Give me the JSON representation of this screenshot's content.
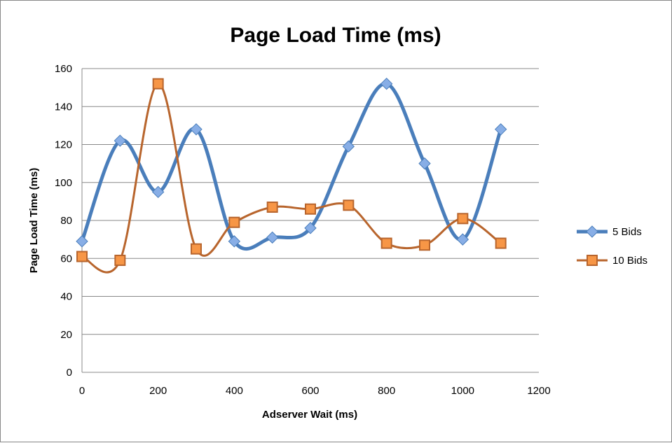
{
  "chart_data": {
    "type": "line",
    "title": "Page Load Time (ms)",
    "xlabel": "Adserver Wait (ms)",
    "ylabel": "Page Load Time (ms)",
    "xlim": [
      0,
      1200
    ],
    "ylim": [
      0,
      160
    ],
    "xticks": [
      0,
      200,
      400,
      600,
      800,
      1000,
      1200
    ],
    "yticks": [
      0,
      20,
      40,
      60,
      80,
      100,
      120,
      140,
      160
    ],
    "grid": "horizontal",
    "smooth": true,
    "legend_position": "right",
    "x": [
      0,
      100,
      200,
      300,
      400,
      500,
      600,
      700,
      800,
      900,
      1000,
      1100
    ],
    "series": [
      {
        "name": "5 Bids",
        "color": "#4a7ebb",
        "marker": "diamond",
        "marker_fill": "#88aee6",
        "values": [
          69,
          122,
          95,
          128,
          69,
          71,
          76,
          119,
          152,
          110,
          70,
          128
        ]
      },
      {
        "name": "10 Bids",
        "color": "#b8652d",
        "marker": "square",
        "marker_fill": "#f79646",
        "values": [
          61,
          59,
          152,
          65,
          79,
          87,
          86,
          88,
          68,
          67,
          81,
          68
        ]
      }
    ]
  }
}
